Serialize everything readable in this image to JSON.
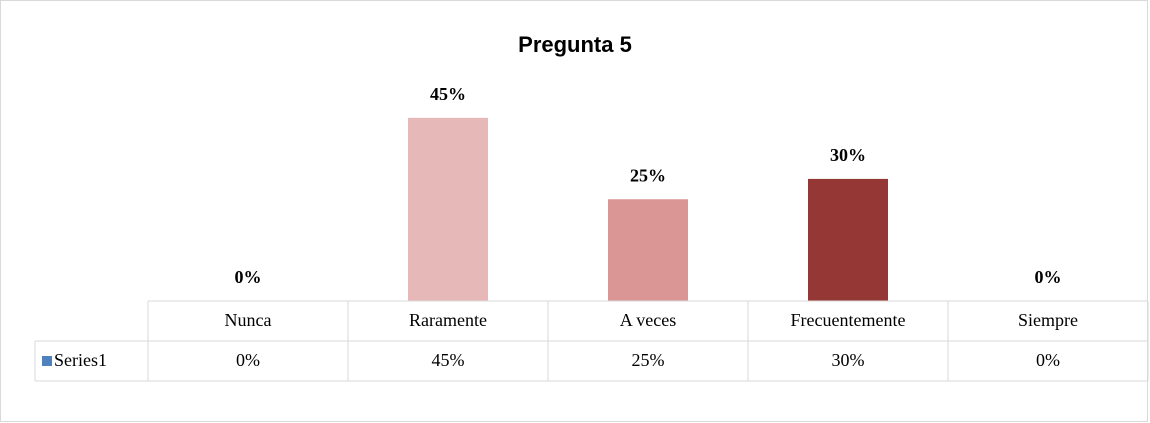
{
  "chart_data": {
    "type": "bar",
    "title": "Pregunta 5",
    "categories": [
      "Nunca",
      "Raramente",
      "A veces",
      "Frecuentemente",
      "Siempre"
    ],
    "series": [
      {
        "name": "Series1",
        "color": "#4f81bd",
        "values": [
          0,
          45,
          25,
          30,
          0
        ],
        "value_labels": [
          "0%",
          "45%",
          "25%",
          "30%",
          "0%"
        ],
        "colors": [
          "#f2dcdb",
          "#e6b9b8",
          "#d99694",
          "#953735",
          "#632523"
        ]
      }
    ],
    "data_table": true
  }
}
